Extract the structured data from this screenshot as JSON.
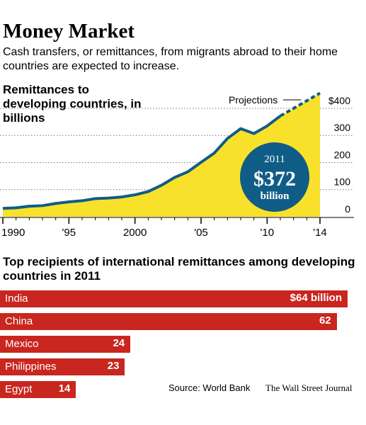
{
  "header": {
    "title": "Money Market",
    "subtitle": "Cash transfers, or remittances, from migrants abroad to their home countries are expected to increase."
  },
  "source": "Source: World Bank",
  "credit": "The Wall Street Journal",
  "colors": {
    "area_fill": "#f9e12b",
    "line": "#0f5d86",
    "callout": "#0f5d86",
    "bar": "#c8261f",
    "grid": "#777777"
  },
  "chart_data": [
    {
      "type": "area",
      "title": "Remittances to developing countries, in billions",
      "xlabel": "",
      "ylabel": "",
      "xlim": [
        1990,
        2014
      ],
      "ylim": [
        0,
        460
      ],
      "x_ticks": [
        1990,
        1995,
        2000,
        2005,
        2010,
        2014
      ],
      "x_tick_labels": [
        "1990",
        "'95",
        "2000",
        "'05",
        "'10",
        "'14"
      ],
      "y_ticks": [
        0,
        100,
        200,
        300,
        400
      ],
      "y_tick_labels": [
        "0",
        "100",
        "200",
        "300",
        "$400"
      ],
      "grid": true,
      "series": [
        {
          "kind": "actual",
          "x": [
            1990,
            1991,
            1992,
            1993,
            1994,
            1995,
            1996,
            1997,
            1998,
            1999,
            2000,
            2001,
            2002,
            2003,
            2004,
            2005,
            2006,
            2007,
            2008,
            2009,
            2010,
            2011
          ],
          "values": [
            31,
            33,
            39,
            41,
            49,
            55,
            59,
            67,
            69,
            73,
            81,
            93,
            116,
            145,
            166,
            201,
            235,
            289,
            325,
            307,
            335,
            372
          ]
        },
        {
          "name": "Projections",
          "kind": "projection",
          "x": [
            2011,
            2012,
            2013,
            2014
          ],
          "values": [
            372,
            400,
            428,
            456
          ]
        }
      ],
      "annotations": [
        {
          "text": "Projections",
          "target_x": 2012.8
        },
        {
          "year": "2011",
          "value_text": "$372",
          "unit": "billion",
          "x": 2011,
          "value": 372
        }
      ]
    },
    {
      "type": "bar",
      "orientation": "horizontal",
      "title": "Top recipients of international remittances among developing countries in 2011",
      "categories": [
        "India",
        "China",
        "Mexico",
        "Philippines",
        "Egypt"
      ],
      "values": [
        64,
        62,
        24,
        23,
        14
      ],
      "value_labels": [
        "$64 billion",
        "62",
        "24",
        "23",
        "14"
      ],
      "xlim": [
        0,
        64
      ]
    }
  ]
}
